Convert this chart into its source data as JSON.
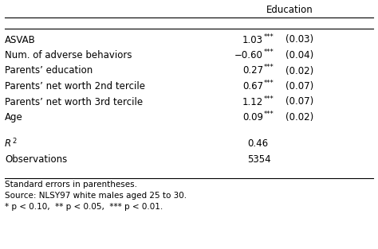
{
  "col_header": "Education",
  "rows": [
    {
      "label": "ASVAB",
      "coef": "1.03",
      "stars": "***",
      "se": "(0.03)"
    },
    {
      "label": "Num. of adverse behaviors",
      "coef": "−0.60",
      "stars": "***",
      "se": "(0.04)"
    },
    {
      "label": "Parents’ education",
      "coef": "0.27",
      "stars": "***",
      "se": "(0.02)"
    },
    {
      "label": "Parents’ net worth 2nd tercile",
      "coef": "0.67",
      "stars": "***",
      "se": "(0.07)"
    },
    {
      "label": "Parents’ net worth 3rd tercile",
      "coef": "1.12",
      "stars": "***",
      "se": "(0.07)"
    },
    {
      "label": "Age",
      "coef": "0.09",
      "stars": "***",
      "se": "(0.02)"
    }
  ],
  "stats": [
    {
      "label": "R2",
      "value": "0.46"
    },
    {
      "label": "Observations",
      "value": "5354"
    }
  ],
  "footnotes": [
    "Standard errors in parentheses.",
    "Source: NLSY97 white males aged 25 to 30.",
    "* p < 0.10,  ** p < 0.05,  *** p < 0.01."
  ],
  "bg_color": "#ffffff",
  "text_color": "#000000",
  "line_color": "#000000",
  "fs_main": 8.5,
  "fs_small": 6.0,
  "fs_footnote": 7.5
}
